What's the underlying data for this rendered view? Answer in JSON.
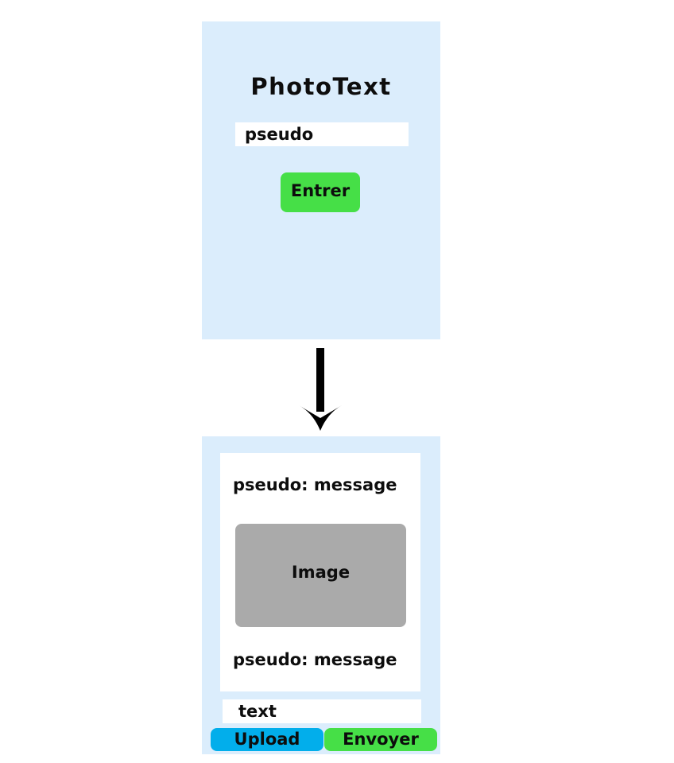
{
  "login_screen": {
    "app_title": "PhotoText",
    "pseudo_field": {
      "placeholder": "pseudo",
      "value": ""
    },
    "enter_button_label": "Entrer",
    "background_color": "#dbedfc",
    "enter_button_color": "#46df47"
  },
  "flow_arrow": {
    "icon": "arrow-down-icon",
    "direction": "down"
  },
  "chat_screen": {
    "messages": [
      {
        "text": "pseudo: message"
      },
      {
        "image_label": "Image"
      },
      {
        "text": "pseudo: message"
      }
    ],
    "text_field": {
      "placeholder": "text",
      "value": ""
    },
    "upload_button_label": "Upload",
    "send_button_label": "Envoyer",
    "background_color": "#dbedfc",
    "image_placeholder_color": "#aaaaaa",
    "upload_button_color": "#02aeeb",
    "send_button_color": "#46df47"
  }
}
